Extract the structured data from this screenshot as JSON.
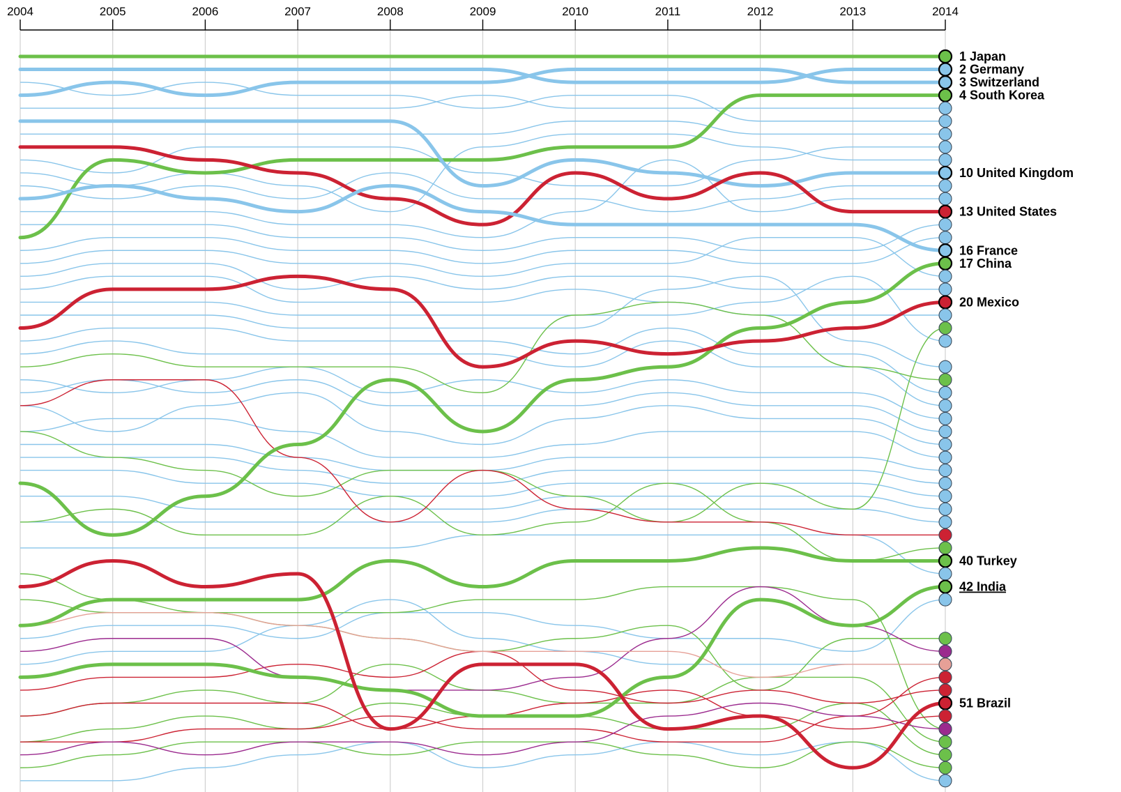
{
  "chart_data": {
    "type": "line",
    "subtype": "rank-bump-chart",
    "title": "",
    "xlabel": "",
    "ylabel": "",
    "x": [
      2004,
      2005,
      2006,
      2007,
      2008,
      2009,
      2010,
      2011,
      2012,
      2013,
      2014
    ],
    "y_scale": "rank",
    "y_direction": "1 at top",
    "grid": "vertical lines at each year",
    "colors": {
      "blue": "#89c5ea",
      "green": "#6cc04a",
      "red": "#cc2233",
      "purple": "#9b2a8e",
      "pink": "#e6a097",
      "axis": "#000000",
      "gridline": "#d0d0d0"
    },
    "label_format": "{rank} {name}",
    "highlighted": [
      {
        "name": "Japan",
        "color": "green",
        "ranks": [
          1,
          1,
          1,
          1,
          1,
          1,
          1,
          1,
          1,
          1,
          1
        ],
        "label_rank": "1"
      },
      {
        "name": "Germany",
        "color": "blue",
        "ranks": [
          2,
          2,
          2,
          2,
          2,
          2,
          3,
          3,
          3,
          2,
          2
        ],
        "label_rank": "2"
      },
      {
        "name": "Switzerland",
        "color": "blue",
        "ranks": [
          4,
          3,
          4,
          3,
          3,
          3,
          2,
          2,
          2,
          3,
          3
        ],
        "label_rank": "3"
      },
      {
        "name": "South Korea",
        "color": "green",
        "ranks": [
          15,
          9,
          10,
          9,
          9,
          9,
          8,
          8,
          4,
          4,
          4
        ],
        "label_rank": "4"
      },
      {
        "name": "United Kingdom",
        "color": "blue",
        "ranks": [
          6,
          6,
          6,
          6,
          6,
          11,
          9,
          10,
          11,
          10,
          10
        ],
        "label_rank": "10"
      },
      {
        "name": "United States",
        "color": "red",
        "ranks": [
          8,
          8,
          9,
          10,
          12,
          14,
          10,
          12,
          10,
          13,
          13
        ],
        "label_rank": "13"
      },
      {
        "name": "France",
        "color": "blue",
        "ranks": [
          12,
          11,
          12,
          13,
          11,
          13,
          14,
          14,
          14,
          14,
          16
        ],
        "label_rank": "16"
      },
      {
        "name": "China",
        "color": "green",
        "ranks": [
          34,
          38,
          35,
          31,
          26,
          30,
          26,
          25,
          22,
          20,
          17
        ],
        "label_rank": "17"
      },
      {
        "name": "Mexico",
        "color": "red",
        "ranks": [
          22,
          19,
          19,
          18,
          19,
          25,
          23,
          24,
          23,
          22,
          20
        ],
        "label_rank": "20"
      },
      {
        "name": "Turkey",
        "color": "green",
        "ranks": [
          45,
          43,
          43,
          43,
          40,
          42,
          40,
          40,
          39,
          40,
          40
        ],
        "label_rank": "40"
      },
      {
        "name": "India",
        "color": "green",
        "ranks": [
          49,
          48,
          48,
          49,
          50,
          52,
          52,
          49,
          43,
          45,
          42
        ],
        "label_rank": "42"
      },
      {
        "name": "Brazil",
        "color": "red",
        "ranks": [
          42,
          40,
          42,
          41,
          53,
          48,
          48,
          53,
          52,
          56,
          51
        ],
        "label_rank": "51"
      }
    ],
    "background": [
      {
        "color": "blue",
        "ranks": [
          5,
          5,
          5,
          5,
          5,
          4,
          5,
          5,
          5,
          5,
          5
        ]
      },
      {
        "color": "blue",
        "ranks": [
          3,
          4,
          3,
          4,
          4,
          5,
          4,
          4,
          6,
          6,
          6
        ]
      },
      {
        "color": "blue",
        "ranks": [
          7,
          7,
          7,
          7,
          7,
          7,
          6,
          6,
          7,
          7,
          7
        ]
      },
      {
        "color": "blue",
        "ranks": [
          9,
          10,
          8,
          8,
          8,
          10,
          11,
          11,
          9,
          8,
          8
        ]
      },
      {
        "color": "blue",
        "ranks": [
          10,
          11,
          10,
          11,
          13,
          8,
          7,
          7,
          8,
          9,
          9
        ]
      },
      {
        "color": "blue",
        "ranks": [
          11,
          12,
          11,
          12,
          10,
          12,
          12,
          13,
          12,
          11,
          11
        ]
      },
      {
        "color": "blue",
        "ranks": [
          13,
          13,
          13,
          14,
          14,
          15,
          13,
          9,
          13,
          12,
          12
        ]
      },
      {
        "color": "blue",
        "ranks": [
          14,
          14,
          14,
          15,
          15,
          16,
          15,
          15,
          16,
          16,
          14
        ]
      },
      {
        "color": "blue",
        "ranks": [
          16,
          15,
          15,
          16,
          16,
          17,
          16,
          16,
          17,
          17,
          15
        ]
      },
      {
        "color": "blue",
        "ranks": [
          17,
          16,
          16,
          17,
          17,
          18,
          17,
          17,
          15,
          15,
          18
        ]
      },
      {
        "color": "blue",
        "ranks": [
          18,
          17,
          17,
          19,
          18,
          19,
          18,
          18,
          19,
          19,
          19
        ]
      },
      {
        "color": "blue",
        "ranks": [
          19,
          18,
          18,
          20,
          20,
          20,
          19,
          20,
          21,
          21,
          21
        ]
      },
      {
        "color": "blue",
        "ranks": [
          20,
          20,
          20,
          21,
          21,
          21,
          21,
          21,
          20,
          18,
          23
        ]
      },
      {
        "color": "blue",
        "ranks": [
          21,
          21,
          21,
          22,
          22,
          22,
          22,
          19,
          18,
          23,
          25
        ]
      },
      {
        "color": "blue",
        "ranks": [
          23,
          22,
          22,
          23,
          23,
          23,
          24,
          22,
          24,
          24,
          27
        ]
      },
      {
        "color": "blue",
        "ranks": [
          24,
          23,
          24,
          24,
          24,
          24,
          25,
          23,
          25,
          25,
          28
        ]
      },
      {
        "color": "blue",
        "ranks": [
          26,
          27,
          26,
          25,
          27,
          26,
          27,
          26,
          27,
          27,
          29
        ]
      },
      {
        "color": "blue",
        "ranks": [
          27,
          26,
          27,
          26,
          28,
          28,
          28,
          27,
          28,
          28,
          30
        ]
      },
      {
        "color": "blue",
        "ranks": [
          28,
          30,
          28,
          27,
          30,
          31,
          29,
          28,
          29,
          29,
          31
        ]
      },
      {
        "color": "blue",
        "ranks": [
          30,
          29,
          29,
          30,
          32,
          32,
          31,
          30,
          30,
          30,
          32
        ]
      },
      {
        "color": "blue",
        "ranks": [
          31,
          31,
          31,
          32,
          33,
          33,
          32,
          32,
          32,
          32,
          33
        ]
      },
      {
        "color": "blue",
        "ranks": [
          32,
          32,
          32,
          33,
          34,
          34,
          33,
          33,
          33,
          33,
          34
        ]
      },
      {
        "color": "blue",
        "ranks": [
          33,
          33,
          34,
          34,
          35,
          35,
          34,
          34,
          34,
          34,
          35
        ]
      },
      {
        "color": "blue",
        "ranks": [
          35,
          35,
          36,
          36,
          36,
          36,
          35,
          35,
          35,
          35,
          36
        ]
      },
      {
        "color": "blue",
        "ranks": [
          37,
          37,
          37,
          37,
          37,
          37,
          36,
          36,
          36,
          36,
          37
        ]
      },
      {
        "color": "blue",
        "ranks": [
          39,
          39,
          39,
          39,
          39,
          38,
          38,
          38,
          38,
          38,
          41
        ]
      },
      {
        "color": "blue",
        "ranks": [
          46,
          45,
          45,
          46,
          44,
          44,
          45,
          46,
          46,
          47,
          43
        ]
      },
      {
        "color": "blue",
        "ranks": [
          48,
          47,
          47,
          45,
          43,
          46,
          47,
          48,
          48,
          48,
          48
        ]
      },
      {
        "color": "blue",
        "ranks": [
          57,
          57,
          56,
          55,
          54,
          56,
          55,
          54,
          55,
          54,
          57
        ]
      },
      {
        "color": "green",
        "ranks": [
          25,
          24,
          25,
          25,
          25,
          27,
          21,
          20,
          21,
          25,
          26
        ]
      },
      {
        "color": "green",
        "ranks": [
          30,
          32,
          33,
          35,
          33,
          33,
          35,
          37,
          34,
          36,
          22
        ]
      },
      {
        "color": "green",
        "ranks": [
          37,
          36,
          38,
          38,
          35,
          38,
          37,
          34,
          37,
          40,
          39
        ]
      },
      {
        "color": "green",
        "ranks": [
          43,
          44,
          44,
          45,
          46,
          47,
          46,
          45,
          50,
          46,
          46
        ]
      },
      {
        "color": "green",
        "ranks": [
          41,
          43,
          44,
          44,
          44,
          43,
          43,
          42,
          42,
          43,
          53
        ]
      },
      {
        "color": "green",
        "ranks": [
          52,
          51,
          50,
          51,
          48,
          50,
          51,
          51,
          49,
          49,
          54
        ]
      },
      {
        "color": "green",
        "ranks": [
          54,
          53,
          52,
          53,
          51,
          52,
          52,
          53,
          53,
          51,
          55
        ]
      },
      {
        "color": "green",
        "ranks": [
          56,
          55,
          54,
          54,
          55,
          54,
          54,
          55,
          56,
          54,
          56
        ]
      },
      {
        "color": "red",
        "ranks": [
          28,
          26,
          26,
          32,
          37,
          33,
          36,
          37,
          37,
          38,
          38
        ]
      },
      {
        "color": "red",
        "ranks": [
          50,
          49,
          49,
          48,
          49,
          47,
          50,
          51,
          50,
          51,
          50
        ]
      },
      {
        "color": "red",
        "ranks": [
          52,
          51,
          51,
          51,
          53,
          52,
          51,
          50,
          52,
          53,
          52
        ]
      },
      {
        "color": "red",
        "ranks": [
          54,
          54,
          53,
          53,
          52,
          53,
          53,
          54,
          54,
          52,
          49
        ]
      },
      {
        "color": "purple",
        "ranks": [
          47,
          46,
          46,
          49,
          50,
          50,
          49,
          46,
          42,
          45,
          47
        ]
      },
      {
        "color": "purple",
        "ranks": [
          55,
          54,
          55,
          54,
          54,
          55,
          54,
          52,
          51,
          52,
          53
        ]
      },
      {
        "color": "pink",
        "ranks": [
          45,
          44,
          44,
          45,
          46,
          47,
          47,
          47,
          49,
          48,
          48
        ]
      }
    ]
  }
}
